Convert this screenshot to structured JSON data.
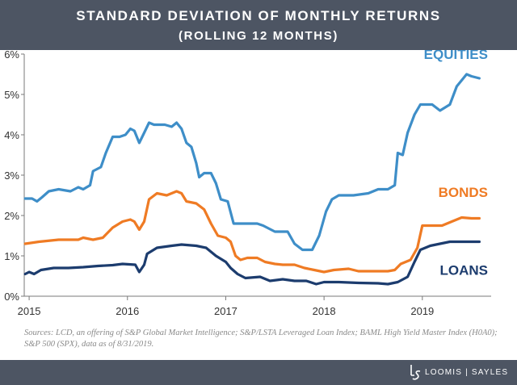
{
  "header": {
    "title_line1": "STANDARD DEVIATION OF MONTHLY RETURNS",
    "title_line2": "(ROLLING 12 MONTHS)"
  },
  "chart_data": {
    "type": "line",
    "xlim": [
      2014.95,
      2019.7
    ],
    "ylim": [
      0,
      6
    ],
    "x_ticks": [
      2015,
      2016,
      2017,
      2018,
      2019
    ],
    "x_tick_labels": [
      "2015",
      "2016",
      "2017",
      "2018",
      "2019"
    ],
    "y_ticks": [
      0,
      1,
      2,
      3,
      4,
      5,
      6
    ],
    "y_tick_labels": [
      "0%",
      "1%",
      "2%",
      "3%",
      "4%",
      "5%",
      "6%"
    ],
    "grid": false,
    "series": [
      {
        "name": "EQUITIES",
        "color": "#3e8ec8",
        "points": [
          [
            2014.96,
            2.42
          ],
          [
            2015.03,
            2.42
          ],
          [
            2015.08,
            2.35
          ],
          [
            2015.13,
            2.45
          ],
          [
            2015.2,
            2.6
          ],
          [
            2015.3,
            2.65
          ],
          [
            2015.42,
            2.6
          ],
          [
            2015.5,
            2.7
          ],
          [
            2015.55,
            2.65
          ],
          [
            2015.62,
            2.75
          ],
          [
            2015.65,
            3.1
          ],
          [
            2015.73,
            3.2
          ],
          [
            2015.78,
            3.55
          ],
          [
            2015.85,
            3.95
          ],
          [
            2015.92,
            3.95
          ],
          [
            2015.98,
            4.0
          ],
          [
            2016.03,
            4.15
          ],
          [
            2016.07,
            4.1
          ],
          [
            2016.12,
            3.8
          ],
          [
            2016.17,
            4.05
          ],
          [
            2016.22,
            4.3
          ],
          [
            2016.27,
            4.25
          ],
          [
            2016.38,
            4.25
          ],
          [
            2016.45,
            4.2
          ],
          [
            2016.5,
            4.3
          ],
          [
            2016.55,
            4.15
          ],
          [
            2016.6,
            3.8
          ],
          [
            2016.65,
            3.7
          ],
          [
            2016.7,
            3.3
          ],
          [
            2016.73,
            2.95
          ],
          [
            2016.78,
            3.05
          ],
          [
            2016.85,
            3.05
          ],
          [
            2016.9,
            2.8
          ],
          [
            2016.95,
            2.4
          ],
          [
            2017.02,
            2.35
          ],
          [
            2017.08,
            1.8
          ],
          [
            2017.13,
            1.8
          ],
          [
            2017.22,
            1.8
          ],
          [
            2017.32,
            1.8
          ],
          [
            2017.38,
            1.75
          ],
          [
            2017.5,
            1.6
          ],
          [
            2017.58,
            1.6
          ],
          [
            2017.63,
            1.6
          ],
          [
            2017.7,
            1.3
          ],
          [
            2017.78,
            1.15
          ],
          [
            2017.88,
            1.15
          ],
          [
            2017.95,
            1.5
          ],
          [
            2018.02,
            2.1
          ],
          [
            2018.08,
            2.4
          ],
          [
            2018.15,
            2.5
          ],
          [
            2018.3,
            2.5
          ],
          [
            2018.45,
            2.55
          ],
          [
            2018.55,
            2.65
          ],
          [
            2018.65,
            2.65
          ],
          [
            2018.72,
            2.75
          ],
          [
            2018.75,
            3.55
          ],
          [
            2018.8,
            3.5
          ],
          [
            2018.85,
            4.05
          ],
          [
            2018.92,
            4.5
          ],
          [
            2018.98,
            4.75
          ],
          [
            2019.1,
            4.75
          ],
          [
            2019.18,
            4.6
          ],
          [
            2019.28,
            4.75
          ],
          [
            2019.35,
            5.2
          ],
          [
            2019.45,
            5.5
          ],
          [
            2019.5,
            5.45
          ],
          [
            2019.58,
            5.4
          ]
        ]
      },
      {
        "name": "BONDS",
        "color": "#ef7b24",
        "points": [
          [
            2014.96,
            1.3
          ],
          [
            2015.1,
            1.35
          ],
          [
            2015.3,
            1.4
          ],
          [
            2015.5,
            1.4
          ],
          [
            2015.55,
            1.45
          ],
          [
            2015.65,
            1.4
          ],
          [
            2015.75,
            1.45
          ],
          [
            2015.85,
            1.7
          ],
          [
            2015.95,
            1.85
          ],
          [
            2016.03,
            1.9
          ],
          [
            2016.07,
            1.85
          ],
          [
            2016.12,
            1.65
          ],
          [
            2016.17,
            1.85
          ],
          [
            2016.22,
            2.4
          ],
          [
            2016.3,
            2.55
          ],
          [
            2016.4,
            2.5
          ],
          [
            2016.5,
            2.6
          ],
          [
            2016.55,
            2.55
          ],
          [
            2016.6,
            2.35
          ],
          [
            2016.7,
            2.3
          ],
          [
            2016.78,
            2.15
          ],
          [
            2016.85,
            1.8
          ],
          [
            2016.92,
            1.5
          ],
          [
            2017.0,
            1.45
          ],
          [
            2017.05,
            1.35
          ],
          [
            2017.1,
            1.0
          ],
          [
            2017.15,
            0.9
          ],
          [
            2017.22,
            0.95
          ],
          [
            2017.32,
            0.95
          ],
          [
            2017.4,
            0.85
          ],
          [
            2017.5,
            0.8
          ],
          [
            2017.58,
            0.78
          ],
          [
            2017.7,
            0.78
          ],
          [
            2017.8,
            0.7
          ],
          [
            2017.9,
            0.65
          ],
          [
            2018.0,
            0.6
          ],
          [
            2018.1,
            0.65
          ],
          [
            2018.25,
            0.68
          ],
          [
            2018.35,
            0.62
          ],
          [
            2018.5,
            0.62
          ],
          [
            2018.65,
            0.62
          ],
          [
            2018.72,
            0.65
          ],
          [
            2018.78,
            0.8
          ],
          [
            2018.88,
            0.9
          ],
          [
            2018.95,
            1.2
          ],
          [
            2019.0,
            1.75
          ],
          [
            2019.1,
            1.75
          ],
          [
            2019.2,
            1.75
          ],
          [
            2019.3,
            1.85
          ],
          [
            2019.4,
            1.95
          ],
          [
            2019.5,
            1.93
          ],
          [
            2019.58,
            1.93
          ]
        ]
      },
      {
        "name": "LOANS",
        "color": "#1c3c6e",
        "points": [
          [
            2014.96,
            0.55
          ],
          [
            2015.0,
            0.6
          ],
          [
            2015.05,
            0.55
          ],
          [
            2015.12,
            0.65
          ],
          [
            2015.25,
            0.7
          ],
          [
            2015.4,
            0.7
          ],
          [
            2015.55,
            0.72
          ],
          [
            2015.7,
            0.75
          ],
          [
            2015.85,
            0.77
          ],
          [
            2015.95,
            0.8
          ],
          [
            2016.08,
            0.78
          ],
          [
            2016.12,
            0.6
          ],
          [
            2016.17,
            0.78
          ],
          [
            2016.2,
            1.05
          ],
          [
            2016.3,
            1.2
          ],
          [
            2016.45,
            1.25
          ],
          [
            2016.55,
            1.28
          ],
          [
            2016.7,
            1.25
          ],
          [
            2016.8,
            1.2
          ],
          [
            2016.9,
            1.0
          ],
          [
            2017.0,
            0.85
          ],
          [
            2017.05,
            0.7
          ],
          [
            2017.12,
            0.55
          ],
          [
            2017.2,
            0.45
          ],
          [
            2017.35,
            0.48
          ],
          [
            2017.45,
            0.38
          ],
          [
            2017.58,
            0.42
          ],
          [
            2017.7,
            0.38
          ],
          [
            2017.82,
            0.38
          ],
          [
            2017.92,
            0.3
          ],
          [
            2018.0,
            0.35
          ],
          [
            2018.15,
            0.35
          ],
          [
            2018.35,
            0.33
          ],
          [
            2018.55,
            0.32
          ],
          [
            2018.65,
            0.3
          ],
          [
            2018.75,
            0.35
          ],
          [
            2018.85,
            0.48
          ],
          [
            2018.92,
            0.85
          ],
          [
            2018.98,
            1.15
          ],
          [
            2019.08,
            1.25
          ],
          [
            2019.18,
            1.3
          ],
          [
            2019.28,
            1.35
          ],
          [
            2019.4,
            1.35
          ],
          [
            2019.5,
            1.35
          ],
          [
            2019.58,
            1.35
          ]
        ]
      }
    ]
  },
  "source_text": "Sources: LCD, an offering of S&P Global Market Intelligence; S&P/LSTA Leveraged Loan Index; BAML High Yield Master Index (H0A0); S&P 500 (SPX), data as of 8/31/2019.",
  "footer": {
    "logo_text": "LOOMIS | SAYLES",
    "logo_mark": "ls"
  }
}
